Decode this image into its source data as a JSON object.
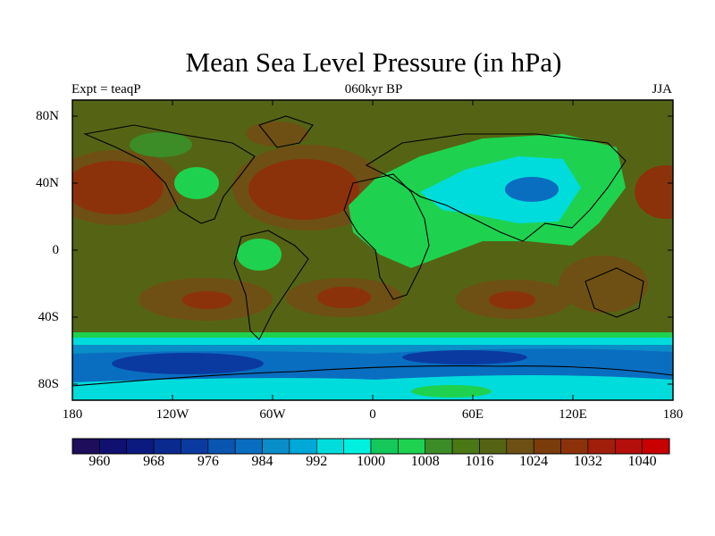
{
  "title": "Mean Sea Level Pressure (in hPa)",
  "subtitle_left": "Expt = teaqP",
  "subtitle_center": "060kyr BP",
  "subtitle_right": "JJA",
  "lat_labels": [
    "80N",
    "40N",
    "0",
    "40S",
    "80S"
  ],
  "lon_labels": [
    "180",
    "120W",
    "60W",
    "0",
    "60E",
    "120E",
    "180"
  ],
  "colorbar": {
    "labels": [
      "960",
      "968",
      "976",
      "984",
      "992",
      "1000",
      "1008",
      "1016",
      "1024",
      "1032",
      "1040"
    ],
    "colors": [
      "#1d0d5a",
      "#101070",
      "#0a1a80",
      "#0a2a90",
      "#0a3aa0",
      "#0a55b0",
      "#0a6ec0",
      "#0a8ec8",
      "#00a8d8",
      "#00dcdc",
      "#00f0e0",
      "#14c85a",
      "#1ed250",
      "#3c8c28",
      "#4a7814",
      "#556414",
      "#6e5014",
      "#7a3c0a",
      "#8c320a",
      "#a01e0a",
      "#b40f0a",
      "#c80000"
    ]
  },
  "colors": {
    "ocean_base": "#556414",
    "high": "#8c320a",
    "high_core": "#a01e0a",
    "mid": "#6e5014",
    "low_land": "#1ed250",
    "cyan": "#00dcdc",
    "deep_blue": "#0a3aa0",
    "blue": "#0a6ec0"
  }
}
